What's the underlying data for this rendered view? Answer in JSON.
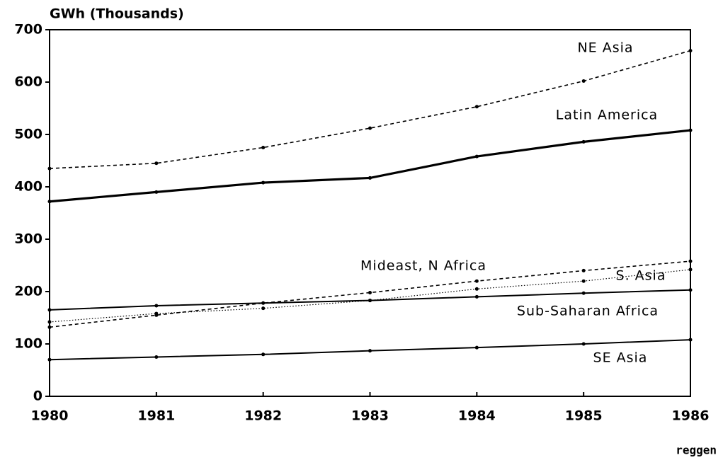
{
  "chart_data": {
    "type": "line",
    "y_label": "GWh (Thousands)",
    "footnote": "reggen",
    "x": [
      1980,
      1981,
      1982,
      1983,
      1984,
      1985,
      1986
    ],
    "xlim": [
      1980,
      1986
    ],
    "xticks": [
      1980,
      1981,
      1982,
      1983,
      1984,
      1985,
      1986
    ],
    "ylim": [
      0,
      700
    ],
    "yticks": [
      0,
      100,
      200,
      300,
      400,
      500,
      600,
      700
    ],
    "series": [
      {
        "name": "NE Asia",
        "color": "#000000",
        "style": "dashed",
        "values": [
          435,
          445,
          475,
          512,
          553,
          602,
          660
        ]
      },
      {
        "name": "Latin America",
        "color": "#000000",
        "style": "bold",
        "values": [
          372,
          390,
          408,
          417,
          458,
          486,
          508
        ]
      },
      {
        "name": "Mideast, N Africa",
        "color": "#000000",
        "style": "dashed",
        "values": [
          132,
          155,
          178,
          198,
          220,
          240,
          258
        ]
      },
      {
        "name": "S. Asia",
        "color": "#000000",
        "style": "dotted",
        "values": [
          142,
          158,
          168,
          183,
          205,
          220,
          242
        ]
      },
      {
        "name": "Sub-Saharan Africa",
        "color": "#000000",
        "style": "solid",
        "values": [
          165,
          173,
          178,
          183,
          190,
          197,
          203
        ]
      },
      {
        "name": "SE Asia",
        "color": "#000000",
        "style": "solid",
        "values": [
          70,
          75,
          80,
          87,
          93,
          100,
          108
        ]
      }
    ]
  }
}
